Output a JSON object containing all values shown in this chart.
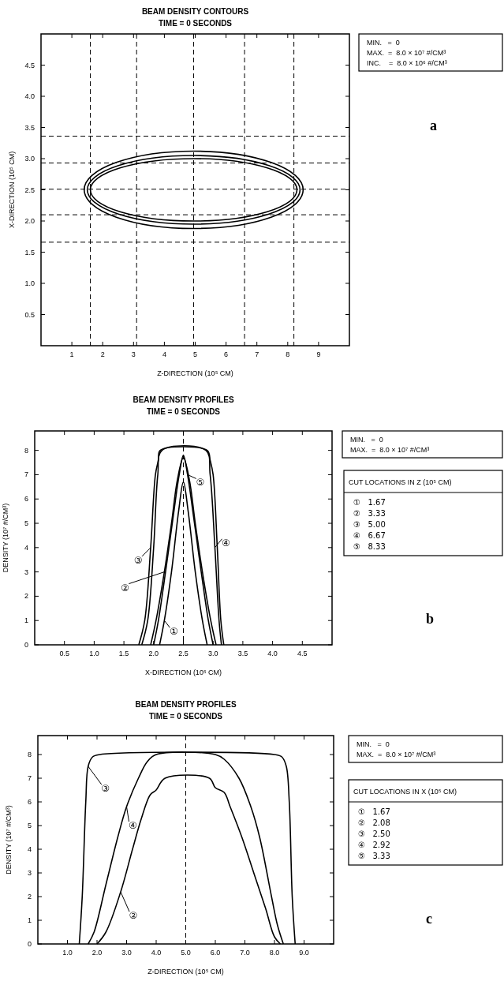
{
  "chart_data": [
    {
      "type": "line",
      "title": "BEAM DENSITY CONTOURS",
      "subtitle": "TIME = 0 SECONDS",
      "xlabel": "Z-DIRECTION (10⁵ CM)",
      "ylabel": "X-DIRECTION (10⁵ CM)",
      "xlim": [
        0,
        10
      ],
      "ylim": [
        0,
        5
      ],
      "xticks": [
        1,
        2,
        3,
        4,
        5,
        6,
        7,
        8,
        9
      ],
      "yticks": [
        0.5,
        {
          "value": 1,
          "label": "1.0"
        },
        1.5,
        {
          "value": 2,
          "label": "2.0"
        },
        2.5,
        {
          "value": 3,
          "label": "3.0"
        },
        3.5,
        {
          "value": 4,
          "label": "4.0"
        },
        4.5
      ],
      "ref_lines": [
        {
          "axis": "x",
          "value": 1.6,
          "line_style": "dashed"
        },
        {
          "axis": "x",
          "value": 3.1,
          "line_style": "dashed"
        },
        {
          "axis": "x",
          "value": 4.95,
          "line_style": "dashed"
        },
        {
          "axis": "x",
          "value": 6.6,
          "line_style": "dashed"
        },
        {
          "axis": "x",
          "value": 8.2,
          "line_style": "dashed"
        },
        {
          "axis": "y",
          "value": 1.66,
          "line_style": "dashed"
        },
        {
          "axis": "y",
          "value": 2.1,
          "line_style": "dashed"
        },
        {
          "axis": "y",
          "value": 2.51,
          "line_style": "dashed"
        },
        {
          "axis": "y",
          "value": 2.93,
          "line_style": "dashed"
        },
        {
          "axis": "y",
          "value": 3.36,
          "line_style": "dashed"
        }
      ],
      "annotations": [
        "MIN.   =  0",
        "MAX.  =  8.0 × 10⁷ #/CM³",
        "INC.    =  8.0 × 10⁶ #/CM³",
        "a"
      ]
    },
    {
      "type": "line",
      "title": "BEAM DENSITY PROFILES",
      "subtitle": "TIME = 0 SECONDS",
      "xlabel": "X-DIRECTION (10⁵ CM)",
      "ylabel": "DENSITY (10⁷ #/CM³)",
      "xlim": [
        0,
        5
      ],
      "ylim": [
        0,
        8.8
      ],
      "xticks": [
        0.5,
        {
          "value": 1,
          "label": "1.0"
        },
        1.5,
        {
          "value": 2,
          "label": "2.0"
        },
        2.5,
        {
          "value": 3,
          "label": "3.0"
        },
        3.5,
        {
          "value": 4,
          "label": "4.0"
        },
        4.5
      ],
      "yticks": [
        0,
        1,
        2,
        3,
        4,
        5,
        6,
        7,
        8
      ],
      "line_style": "solid",
      "legend": "left",
      "legend_title": "CUT LOCATIONS IN Z (10⁵ CM)",
      "series": [
        {
          "name": "①",
          "color": "#000000",
          "x": [
            2.1,
            2.18,
            2.3,
            2.42,
            2.5,
            2.58,
            2.7,
            2.82,
            2.9
          ],
          "values": [
            0,
            1,
            3,
            5.5,
            6.7,
            5.5,
            3,
            1,
            0
          ]
        },
        {
          "name": "②",
          "color": "#000000",
          "x": [
            1.95,
            2.04,
            2.18,
            2.3,
            2.4,
            2.5,
            2.6,
            2.7,
            2.82,
            2.96,
            3.05
          ],
          "values": [
            0,
            1,
            3,
            5,
            6.8,
            7.7,
            6.8,
            5,
            3,
            1,
            0
          ]
        },
        {
          "name": "③",
          "color": "#000000",
          "x": [
            1.75,
            1.85,
            1.95,
            2.03,
            2.08,
            2.11,
            2.9,
            2.95,
            3.0,
            3.07,
            3.13,
            3.18
          ],
          "values": [
            0,
            1,
            4,
            7,
            7.6,
            8,
            8,
            7.6,
            7,
            4,
            1,
            0
          ]
        },
        {
          "name": "④",
          "color": "#000000",
          "x": [
            1.8,
            1.9,
            2.0,
            2.07,
            2.14,
            2.88,
            2.95,
            3.03,
            3.1,
            3.14
          ],
          "values": [
            0,
            1,
            4,
            7,
            8,
            8,
            7,
            4,
            1,
            0
          ]
        },
        {
          "name": "⑤",
          "color": "#000000",
          "x": [
            2.0,
            2.08,
            2.2,
            2.33,
            2.43,
            2.5,
            2.57,
            2.67,
            2.8,
            2.92,
            3.0
          ],
          "values": [
            0,
            1,
            3,
            5.3,
            7,
            7.8,
            7,
            5.3,
            3,
            1,
            0
          ]
        }
      ],
      "ref_lines": [
        {
          "axis": "x",
          "value": 2.5,
          "line_style": "dashed"
        }
      ],
      "annotations": [
        "MIN.   =  0",
        "MAX.  =  8.0 × 10⁷ #/CM³",
        "①   1.67",
        "②   3.33",
        "③   5.00",
        "④   6.67",
        "⑤   8.33",
        "b"
      ]
    },
    {
      "type": "line",
      "title": "BEAM DENSITY PROFILES",
      "subtitle": "TIME = 0 SECONDS",
      "xlabel": "Z-DIRECTION (10⁵ CM)",
      "ylabel": "DENSITY (10⁷ #/CM³)",
      "xlim": [
        0,
        10
      ],
      "ylim": [
        0,
        8.8
      ],
      "xticks": [
        {
          "value": 1,
          "label": "1.0"
        },
        {
          "value": 2,
          "label": "2.0"
        },
        {
          "value": 3,
          "label": "3.0"
        },
        {
          "value": 4,
          "label": "4.0"
        },
        {
          "value": 5,
          "label": "5.0"
        },
        {
          "value": 6,
          "label": "6.0"
        },
        {
          "value": 7,
          "label": "7.0"
        },
        {
          "value": 8,
          "label": "8.0"
        },
        {
          "value": 9,
          "label": "9.0"
        }
      ],
      "yticks": [
        0,
        1,
        2,
        3,
        4,
        5,
        6,
        7,
        8
      ],
      "line_style": "solid",
      "legend": "left",
      "legend_title": "CUT LOCATIONS IN X (10⁵ CM)",
      "series": [
        {
          "name": "②",
          "color": "#000000",
          "x": [
            2.0,
            2.3,
            2.8,
            3.2,
            3.5,
            3.8,
            4.0,
            4.3,
            5.8,
            6.0,
            6.3,
            6.5,
            6.9,
            7.3,
            7.7,
            8.0,
            8.2
          ],
          "values": [
            0,
            0.5,
            2.2,
            4,
            5.3,
            6.3,
            6.5,
            7,
            7,
            6.6,
            6.4,
            5.8,
            4.5,
            3,
            1.5,
            0.3,
            0
          ]
        },
        {
          "name": "③",
          "color": "#000000",
          "x": [
            1.4,
            1.5,
            1.62,
            1.7,
            1.85,
            2.1,
            8.0,
            8.25,
            8.4,
            8.5,
            8.6,
            8.7
          ],
          "values": [
            0,
            2,
            6,
            7.5,
            7.9,
            8,
            8,
            7.9,
            7.5,
            6,
            2,
            0
          ]
        },
        {
          "name": "④",
          "color": "#000000",
          "x": [
            1.7,
            1.9,
            2.3,
            2.7,
            3.0,
            3.4,
            3.7,
            4.0,
            6.0,
            6.3,
            6.8,
            7.2,
            7.5,
            7.9,
            8.1,
            8.3
          ],
          "values": [
            0,
            0.5,
            2.5,
            4.5,
            5.8,
            7,
            7.7,
            8,
            8,
            7.8,
            7,
            5.8,
            4.5,
            2,
            0.8,
            0
          ]
        }
      ],
      "ref_lines": [
        {
          "axis": "x",
          "value": 5,
          "line_style": "dashed"
        }
      ],
      "annotations": [
        "MIN.   =  0",
        "MAX.  =  8.0 × 10⁷ #/CM³",
        "①   1.67",
        "②   2.08",
        "③   2.50",
        "④   2.92",
        "⑤   3.33",
        "c"
      ]
    }
  ]
}
